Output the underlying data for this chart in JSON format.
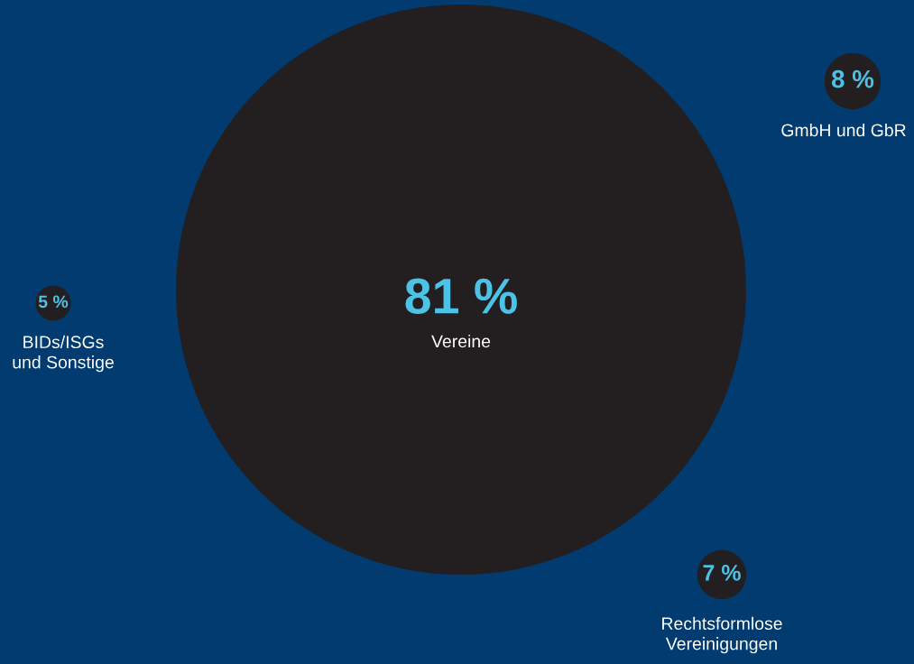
{
  "chart_data": {
    "type": "other",
    "categories": [
      "Vereine",
      "GmbH und GbR",
      "BIDs/ISGs\nund Sonstige",
      "Rechtsformlose\nVereinigungen"
    ],
    "values": [
      81,
      8,
      5,
      7
    ],
    "value_labels": [
      "81 %",
      "8 %",
      "5 %",
      "7 %"
    ],
    "colors": [
      "#231f20",
      "#231f20",
      "#231f20",
      "#231f20"
    ]
  }
}
